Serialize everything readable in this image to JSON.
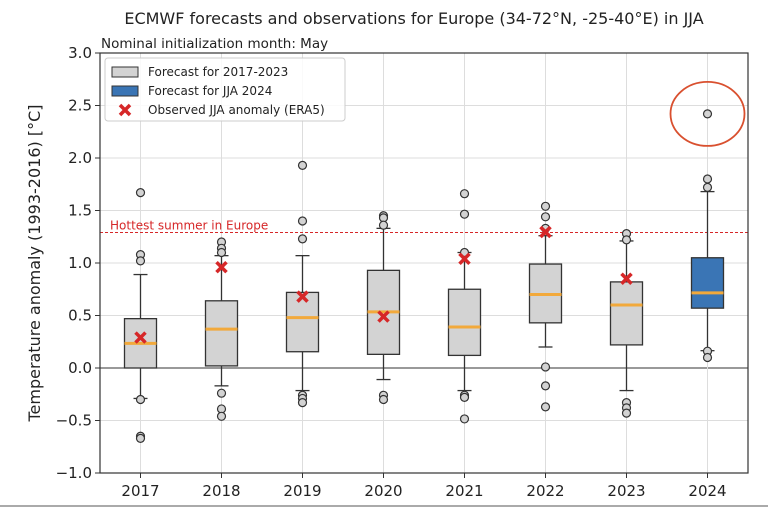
{
  "chart_data": {
    "type": "box",
    "title": "ECMWF forecasts and observations for Europe (34-72°N, -25-40°E) in JJA",
    "subtitle": "Nominal initialization month: May",
    "xlabel": "",
    "ylabel": "Temperature anomaly (1993-2016) [°C]",
    "ylim": [
      -1.0,
      3.0
    ],
    "yticks": [
      "-1.0",
      "-0.5",
      "0.0",
      "0.5",
      "1.0",
      "1.5",
      "2.0",
      "2.5",
      "3.0"
    ],
    "grid": true,
    "legend_placement": "top-left",
    "legend": [
      {
        "label": "Forecast for 2017-2023",
        "kind": "box",
        "color": "#d3d3d3"
      },
      {
        "label": "Forecast for JJA 2024",
        "kind": "box",
        "color": "#3a75b5"
      },
      {
        "label": "Observed JJA anomaly (ERA5)",
        "kind": "x-marker",
        "color": "#d62728"
      }
    ],
    "reference_line": {
      "label": "Hottest summer in Europe",
      "value": 1.29,
      "color": "#d62728"
    },
    "median_color": "#f2a93b",
    "boxes": [
      {
        "year": "2017",
        "q1": 0.0,
        "median": 0.235,
        "q3": 0.47,
        "whisker_low": -0.29,
        "whisker_high": 0.89,
        "fliers": [
          1.67,
          1.08,
          1.02,
          -0.3,
          -0.65,
          -0.67
        ],
        "observed": 0.29,
        "color": "#d3d3d3"
      },
      {
        "year": "2018",
        "q1": 0.02,
        "median": 0.37,
        "q3": 0.64,
        "whisker_low": -0.17,
        "whisker_high": 1.07,
        "fliers": [
          1.2,
          1.14,
          1.1,
          -0.24,
          -0.39,
          -0.46
        ],
        "observed": 0.96,
        "color": "#d3d3d3"
      },
      {
        "year": "2019",
        "q1": 0.155,
        "median": 0.48,
        "q3": 0.72,
        "whisker_low": -0.215,
        "whisker_high": 1.07,
        "fliers": [
          1.93,
          1.4,
          1.23,
          -0.26,
          -0.29,
          -0.33
        ],
        "observed": 0.68,
        "color": "#d3d3d3"
      },
      {
        "year": "2020",
        "q1": 0.13,
        "median": 0.535,
        "q3": 0.93,
        "whisker_low": -0.11,
        "whisker_high": 1.33,
        "fliers": [
          1.45,
          1.43,
          1.36,
          -0.26,
          -0.3
        ],
        "observed": 0.49,
        "color": "#d3d3d3"
      },
      {
        "year": "2021",
        "q1": 0.12,
        "median": 0.39,
        "q3": 0.75,
        "whisker_low": -0.215,
        "whisker_high": 1.1,
        "fliers": [
          1.66,
          1.465,
          1.1,
          -0.26,
          -0.28,
          -0.485
        ],
        "observed": 1.04,
        "color": "#d3d3d3"
      },
      {
        "year": "2022",
        "q1": 0.43,
        "median": 0.7,
        "q3": 0.99,
        "whisker_low": 0.2,
        "whisker_high": 1.26,
        "fliers": [
          1.54,
          1.44,
          1.33,
          0.01,
          -0.17,
          -0.37
        ],
        "observed": 1.295,
        "color": "#d3d3d3"
      },
      {
        "year": "2023",
        "q1": 0.22,
        "median": 0.6,
        "q3": 0.82,
        "whisker_low": -0.215,
        "whisker_high": 1.21,
        "fliers": [
          1.28,
          1.22,
          -0.33,
          -0.38,
          -0.43
        ],
        "observed": 0.85,
        "color": "#d3d3d3"
      },
      {
        "year": "2024",
        "q1": 0.57,
        "median": 0.715,
        "q3": 1.05,
        "whisker_low": 0.165,
        "whisker_high": 1.68,
        "fliers": [
          2.42,
          1.8,
          1.72,
          0.16,
          0.1
        ],
        "observed": null,
        "color": "#3a75b5"
      }
    ],
    "annotation": {
      "kind": "ellipse",
      "target_year": "2024",
      "target_value": 2.42,
      "color": "#d9502f"
    }
  }
}
